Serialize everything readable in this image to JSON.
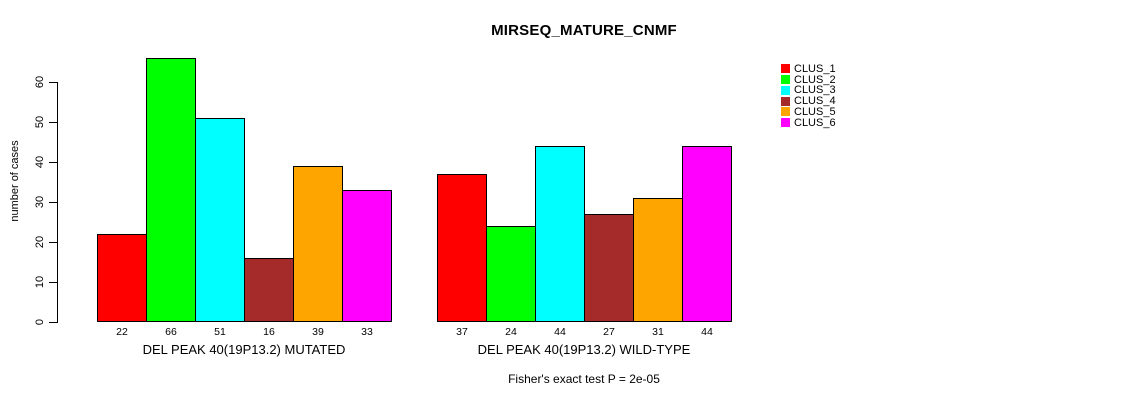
{
  "chart_data": {
    "type": "bar",
    "title": "MIRSEQ_MATURE_CNMF",
    "ylabel": "number of cases",
    "xlabel": "",
    "yticks": [
      0,
      10,
      20,
      30,
      40,
      50,
      60
    ],
    "ylim": [
      0,
      66
    ],
    "grid": false,
    "legend_position": "right-top",
    "background": "#ffffff",
    "bar_border_color": "#000000",
    "categories": [
      "DEL PEAK 40(19P13.2) MUTATED",
      "DEL PEAK 40(19P13.2) WILD-TYPE"
    ],
    "series": [
      {
        "name": "CLUS_1",
        "color": "#ff0000",
        "values": [
          22,
          37
        ]
      },
      {
        "name": "CLUS_2",
        "color": "#00ff00",
        "values": [
          66,
          24
        ]
      },
      {
        "name": "CLUS_3",
        "color": "#00ffff",
        "values": [
          51,
          44
        ]
      },
      {
        "name": "CLUS_4",
        "color": "#a52a2a",
        "values": [
          16,
          27
        ]
      },
      {
        "name": "CLUS_5",
        "color": "#ffa500",
        "values": [
          39,
          31
        ]
      },
      {
        "name": "CLUS_6",
        "color": "#ff00ff",
        "values": [
          33,
          44
        ]
      }
    ],
    "show_value_labels": true,
    "footer": "Fisher's exact test P = 2e-05"
  }
}
